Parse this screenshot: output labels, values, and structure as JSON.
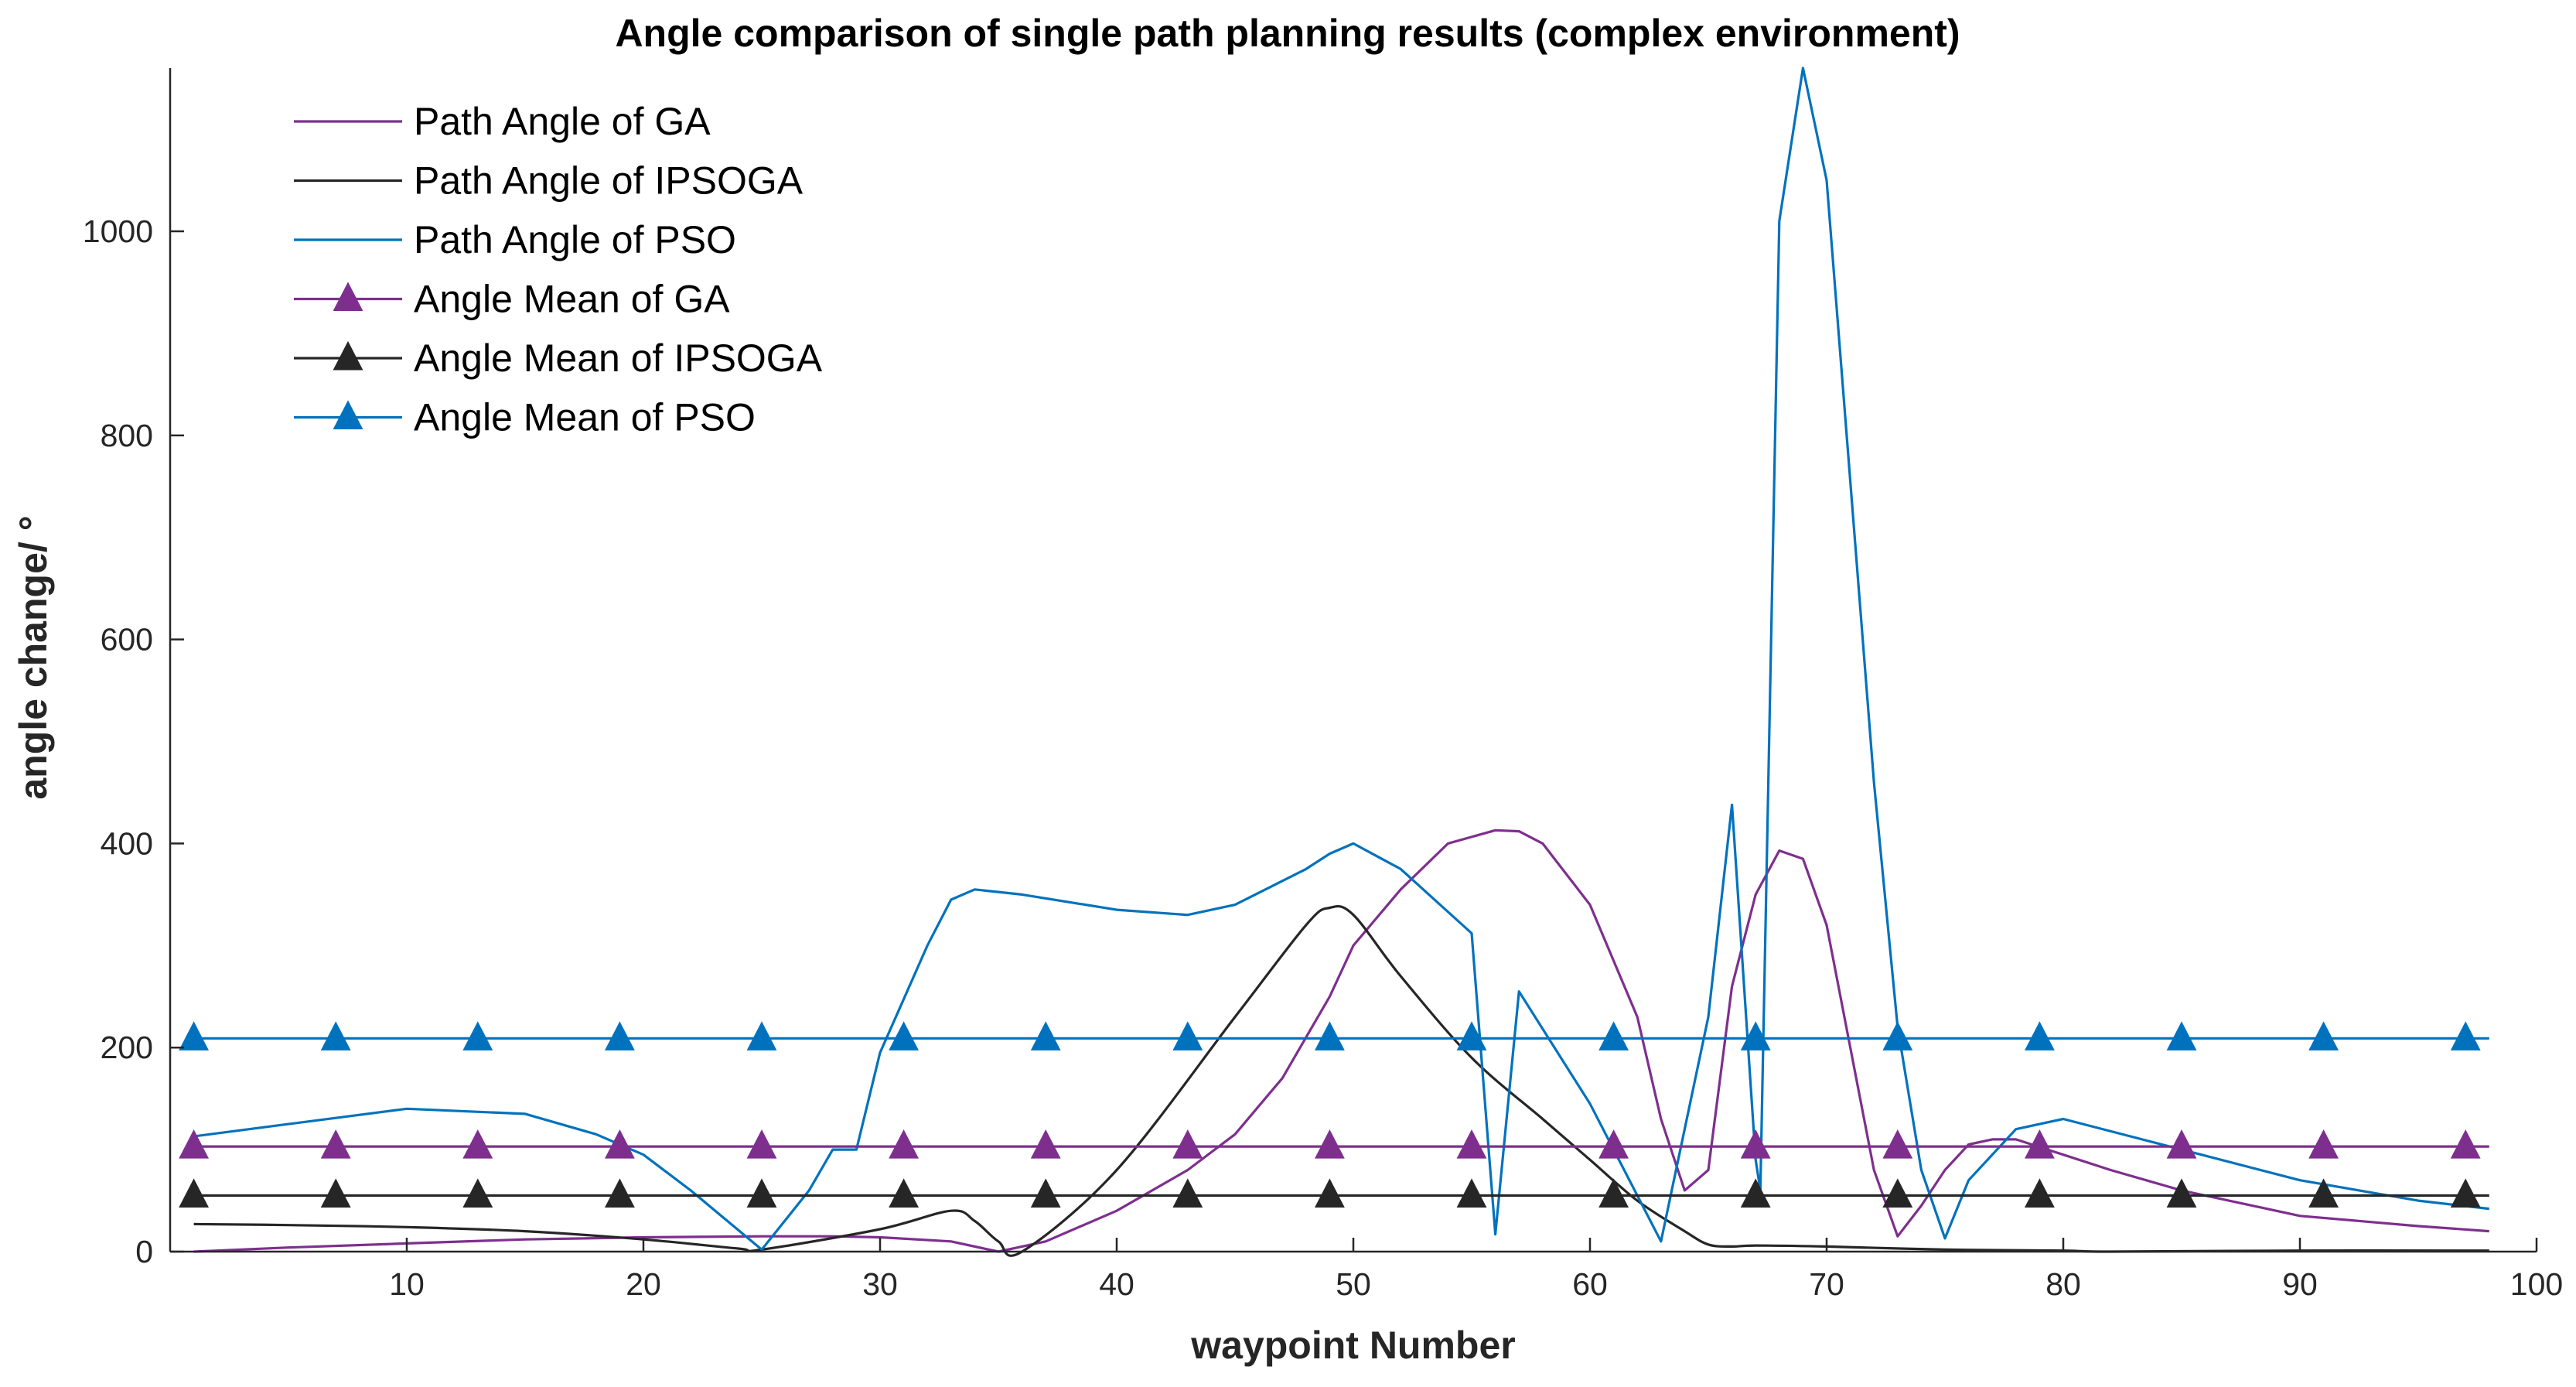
{
  "chart_data": {
    "type": "line",
    "title": "Angle comparison of single path planning results (complex environment)",
    "xlabel": "waypoint Number",
    "ylabel": "angle change/ °",
    "xlim": [
      0,
      100
    ],
    "ylim": [
      0,
      1160
    ],
    "x_ticks": [
      10,
      20,
      30,
      40,
      50,
      60,
      70,
      80,
      90,
      100
    ],
    "y_ticks": [
      0,
      200,
      400,
      600,
      800,
      1000
    ],
    "grid": false,
    "legend_position": "top-left",
    "colors": {
      "GA": "#7e2f8e",
      "IPSOGA": "#262626",
      "PSO": "#0072bd",
      "axis": "#262626"
    },
    "series": [
      {
        "name": "Path Angle of GA",
        "color": "#7e2f8e",
        "marker": "none",
        "x": [
          1,
          5,
          10,
          15,
          20,
          25,
          28,
          30,
          33,
          35,
          36,
          37,
          40,
          43,
          45,
          47,
          49,
          50,
          52,
          54,
          56,
          57,
          58,
          60,
          62,
          63,
          64,
          65,
          66,
          67,
          68,
          69,
          70,
          72,
          73,
          74,
          75,
          76,
          77,
          78,
          80,
          82,
          85,
          90,
          95,
          98
        ],
        "y": [
          0,
          4,
          8,
          12,
          14,
          15,
          15,
          14,
          10,
          0,
          5,
          10,
          40,
          80,
          115,
          170,
          250,
          300,
          355,
          400,
          413,
          412,
          400,
          340,
          230,
          130,
          60,
          80,
          260,
          350,
          393,
          385,
          320,
          80,
          15,
          45,
          80,
          105,
          110,
          110,
          95,
          80,
          60,
          35,
          25,
          20
        ]
      },
      {
        "name": "Path Angle of IPSOGA",
        "color": "#262626",
        "marker": "none",
        "x": [
          1,
          5,
          10,
          15,
          20,
          24,
          25,
          30,
          33,
          34,
          35,
          36,
          40,
          45,
          48,
          49,
          50,
          52,
          55,
          58,
          60,
          62,
          64,
          65,
          66,
          67,
          70,
          75,
          80,
          82,
          90,
          98
        ],
        "y": [
          27,
          26,
          24,
          20,
          12,
          3,
          2,
          22,
          40,
          30,
          10,
          0,
          80,
          230,
          320,
          337,
          330,
          270,
          190,
          130,
          90,
          50,
          20,
          7,
          5,
          6,
          5,
          2,
          1,
          0,
          1,
          1
        ],
        "smooth": true
      },
      {
        "name": "Path Angle of PSO",
        "color": "#0072bd",
        "marker": "none",
        "x": [
          1,
          5,
          10,
          15,
          18,
          20,
          22,
          25,
          27,
          28,
          29,
          30,
          32,
          33,
          34,
          36,
          40,
          43,
          45,
          48,
          49,
          50,
          52,
          55,
          56,
          57,
          60,
          63,
          65,
          66,
          67,
          67.2,
          68,
          69,
          70,
          72,
          73,
          74,
          75,
          76,
          78,
          80,
          85,
          90,
          95,
          98
        ],
        "y": [
          113,
          125,
          140,
          135,
          115,
          95,
          60,
          2,
          60,
          100,
          100,
          195,
          300,
          345,
          355,
          350,
          335,
          330,
          340,
          375,
          390,
          400,
          375,
          312,
          17,
          255,
          145,
          10,
          230,
          438,
          90,
          60,
          1010,
          1160,
          1050,
          460,
          220,
          80,
          13,
          70,
          120,
          130,
          100,
          70,
          50,
          42
        ]
      },
      {
        "name": "Angle Mean of GA",
        "color": "#7e2f8e",
        "marker": "triangle",
        "x": [
          1,
          98
        ],
        "y": [
          103,
          103
        ],
        "marker_x": [
          1,
          7,
          13,
          19,
          25,
          31,
          37,
          43,
          49,
          55,
          61,
          67,
          73,
          79,
          85,
          91,
          97
        ]
      },
      {
        "name": "Angle Mean of  IPSOGA",
        "color": "#262626",
        "marker": "triangle",
        "x": [
          1,
          98
        ],
        "y": [
          55,
          55
        ],
        "marker_x": [
          1,
          7,
          13,
          19,
          25,
          31,
          37,
          43,
          49,
          55,
          61,
          67,
          73,
          79,
          85,
          91,
          97
        ]
      },
      {
        "name": "Angle Mean of PSO",
        "color": "#0072bd",
        "marker": "triangle",
        "x": [
          1,
          98
        ],
        "y": [
          209,
          209
        ],
        "marker_x": [
          1,
          7,
          13,
          19,
          25,
          31,
          37,
          43,
          49,
          55,
          61,
          67,
          73,
          79,
          85,
          91,
          97
        ]
      }
    ]
  }
}
